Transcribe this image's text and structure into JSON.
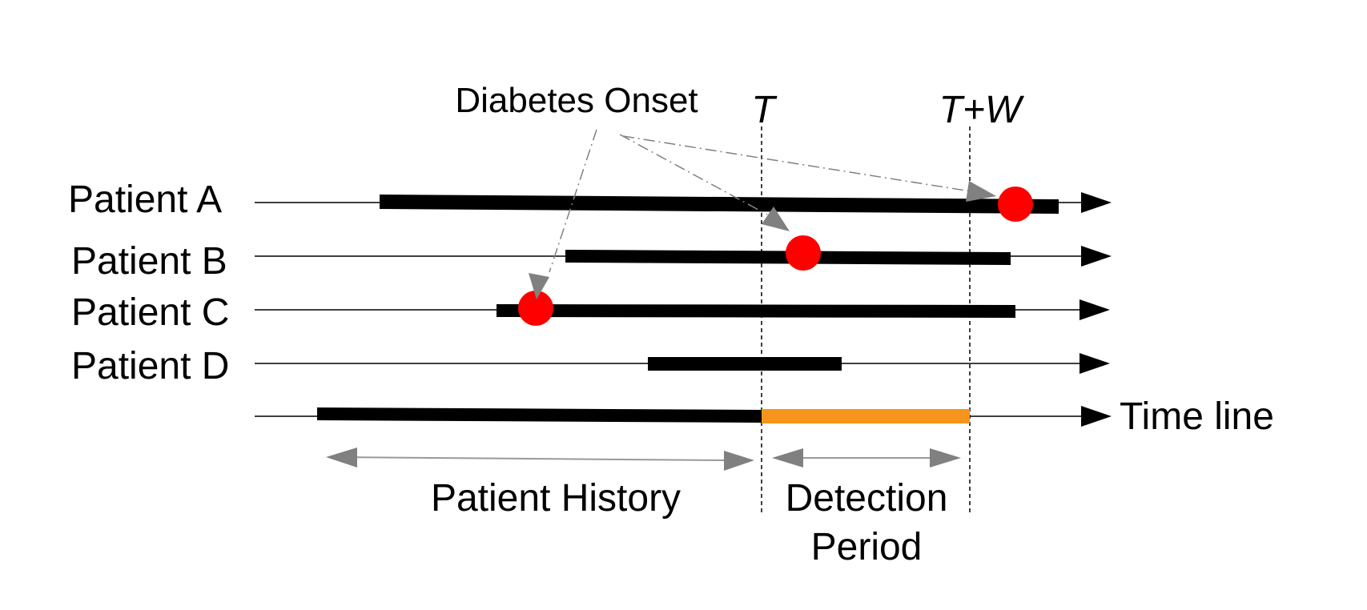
{
  "annotation": {
    "onset_label": "Diabetes Onset"
  },
  "markers": {
    "t_label": "T",
    "tw_label": "T+W"
  },
  "patients": [
    {
      "label": "Patient A"
    },
    {
      "label": "Patient B"
    },
    {
      "label": "Patient C"
    },
    {
      "label": "Patient D"
    }
  ],
  "timeline": {
    "label": "Time line"
  },
  "spans": {
    "history_label": "Patient History",
    "detection_label_line1": "Detection",
    "detection_label_line2": "Period"
  },
  "colors": {
    "bar": "#000000",
    "onset_dot": "#ff0000",
    "detection_bar": "#f7941d",
    "annotation_arrow": "#808080"
  }
}
